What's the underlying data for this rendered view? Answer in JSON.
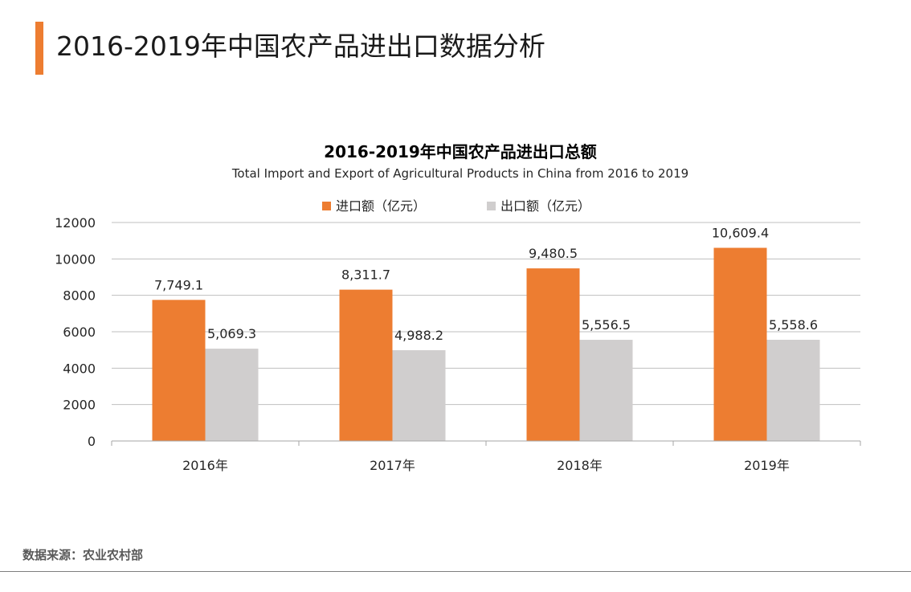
{
  "page": {
    "title": "2016-2019年中国农产品进出口数据分析",
    "accent_color": "#ed7d31"
  },
  "source": {
    "label": "数据来源：农业农村部"
  },
  "chart_data": {
    "type": "bar",
    "title": "2016-2019年中国农产品进出口总额",
    "subtitle": "Total Import and Export of Agricultural Products in China from 2016 to 2019",
    "categories": [
      "2016年",
      "2017年",
      "2018年",
      "2019年"
    ],
    "series": [
      {
        "name": "进口额（亿元）",
        "color": "#ed7d31",
        "values": [
          7749.1,
          8311.7,
          9480.5,
          10609.4
        ],
        "labels": [
          "7,749.1",
          "8,311.7",
          "9,480.5",
          "10,609.4"
        ]
      },
      {
        "name": "出口额（亿元）",
        "color": "#d0cece",
        "values": [
          5069.3,
          4988.2,
          5556.5,
          5558.6
        ],
        "labels": [
          "5,069.3",
          "4,988.2",
          "5,556.5",
          "5,558.6"
        ]
      }
    ],
    "ylim": [
      0,
      12000
    ],
    "yticks": [
      "0",
      "2000",
      "4000",
      "6000",
      "8000",
      "10000",
      "12000"
    ],
    "grid": true,
    "legend_position": "top"
  }
}
